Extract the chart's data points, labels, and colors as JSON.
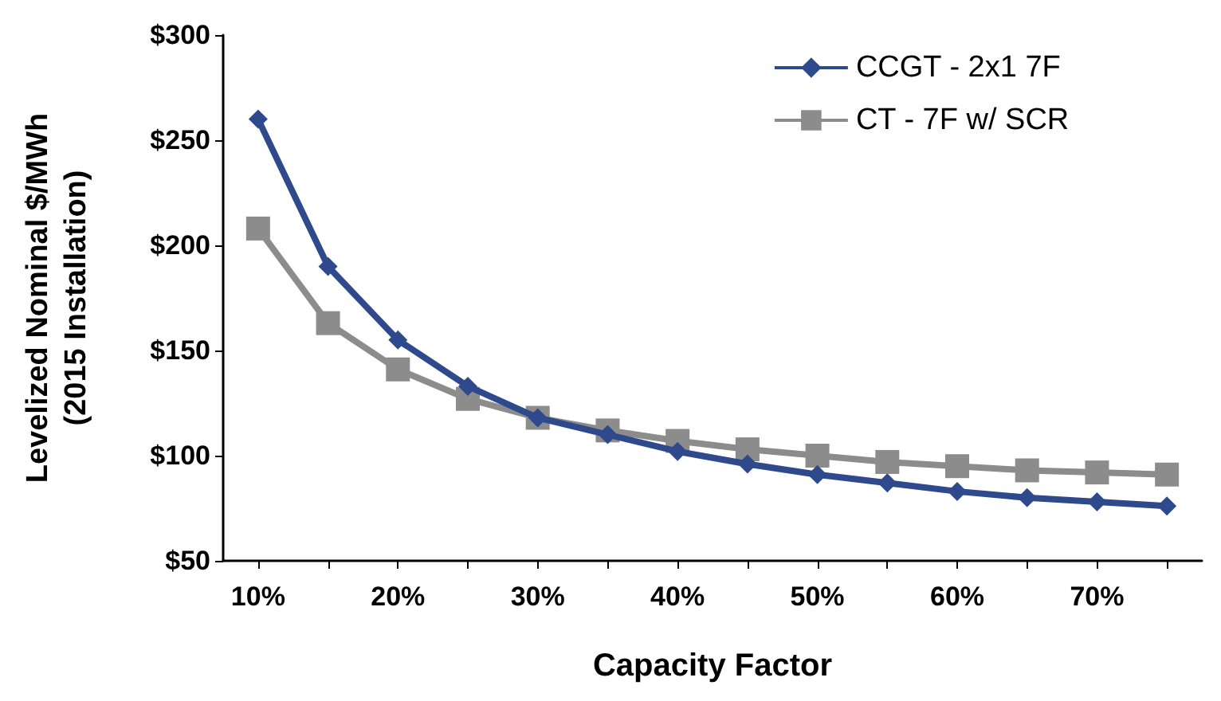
{
  "chart_data": {
    "type": "line",
    "xlabel": "Capacity Factor",
    "ylabel": "Levelized Nominal $/MWh\n(2015 Installation)",
    "categories": [
      "10%",
      null,
      "20%",
      null,
      "30%",
      null,
      "40%",
      null,
      "50%",
      null,
      "60%",
      null,
      "70%",
      null
    ],
    "series": [
      {
        "name": "CCGT - 2x1 7F",
        "color": "#2e4a8c",
        "marker": "diamond",
        "values": [
          260,
          190,
          155,
          133,
          118,
          110,
          102,
          96,
          91,
          87,
          83,
          80,
          78,
          76
        ]
      },
      {
        "name": "CT - 7F w/ SCR",
        "color": "#8c8c8c",
        "marker": "square",
        "values": [
          208,
          163,
          141,
          127,
          118,
          112,
          107,
          103,
          100,
          97,
          95,
          93,
          92,
          91
        ]
      }
    ],
    "ylim": [
      50,
      300
    ],
    "yticks": [
      {
        "value": 50,
        "label": "$50"
      },
      {
        "value": 100,
        "label": "$100"
      },
      {
        "value": 150,
        "label": "$150"
      },
      {
        "value": 200,
        "label": "$200"
      },
      {
        "value": 250,
        "label": "$250"
      },
      {
        "value": 300,
        "label": "$300"
      }
    ],
    "grid": false,
    "legend": "top right",
    "line_style": "solid"
  }
}
